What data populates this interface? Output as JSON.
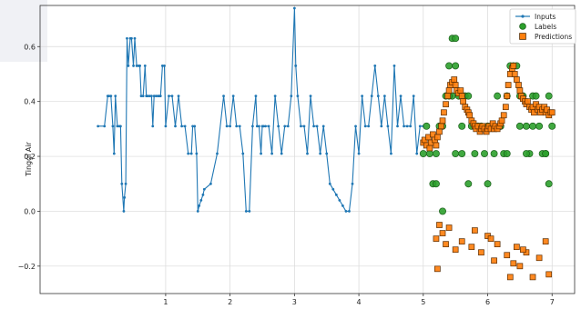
{
  "chart_data": {
    "type": "line",
    "title": "",
    "xlabel": "",
    "ylabel": "Tinggi Air",
    "xlim": [
      -0.95,
      7.35
    ],
    "ylim": [
      -0.3,
      0.75
    ],
    "x_ticks": [
      1,
      2,
      3,
      4,
      5,
      6,
      7
    ],
    "x_tick_labels": [
      "1",
      "2",
      "3",
      "4",
      "5",
      "6",
      "7"
    ],
    "y_ticks": [
      -0.2,
      0.0,
      0.2,
      0.4,
      0.6
    ],
    "y_tick_labels": [
      "−0.2",
      "0.0",
      "0.2",
      "0.4",
      "0.6"
    ],
    "grid": true,
    "legend_position": "top-right",
    "colors": {
      "inputs": "#1f77b4",
      "labels": "#2ca02c",
      "predictions": "#ff7f0e"
    },
    "series": [
      {
        "name": "Inputs",
        "style": "line-dot",
        "x": [
          -0.05,
          0.05,
          0.1,
          0.12,
          0.15,
          0.18,
          0.2,
          0.22,
          0.25,
          0.28,
          0.3,
          0.32,
          0.35,
          0.36,
          0.38,
          0.4,
          0.42,
          0.45,
          0.47,
          0.5,
          0.52,
          0.55,
          0.58,
          0.6,
          0.62,
          0.65,
          0.68,
          0.7,
          0.72,
          0.75,
          0.78,
          0.8,
          0.82,
          0.85,
          0.88,
          0.9,
          0.92,
          0.95,
          0.98,
          1.0,
          1.05,
          1.1,
          1.15,
          1.2,
          1.25,
          1.3,
          1.35,
          1.4,
          1.42,
          1.45,
          1.48,
          1.5,
          1.52,
          1.55,
          1.58,
          1.6,
          1.7,
          1.8,
          1.9,
          1.95,
          2.0,
          2.05,
          2.1,
          2.15,
          2.2,
          2.25,
          2.3,
          2.35,
          2.4,
          2.42,
          2.45,
          2.48,
          2.5,
          2.52,
          2.55,
          2.6,
          2.65,
          2.7,
          2.75,
          2.8,
          2.85,
          2.9,
          2.95,
          3.0,
          3.02,
          3.05,
          3.1,
          3.15,
          3.2,
          3.25,
          3.3,
          3.35,
          3.4,
          3.45,
          3.5,
          3.55,
          3.6,
          3.65,
          3.7,
          3.75,
          3.8,
          3.85,
          3.9,
          3.95,
          4.0,
          4.05,
          4.1,
          4.15,
          4.2,
          4.25,
          4.3,
          4.35,
          4.4,
          4.45,
          4.5,
          4.55,
          4.6,
          4.65,
          4.7,
          4.75,
          4.8,
          4.85,
          4.9,
          4.95,
          5.0
        ],
        "y": [
          0.31,
          0.31,
          0.42,
          0.42,
          0.42,
          0.31,
          0.21,
          0.42,
          0.31,
          0.31,
          0.31,
          0.1,
          0.0,
          0.05,
          0.1,
          0.63,
          0.53,
          0.63,
          0.63,
          0.53,
          0.63,
          0.53,
          0.53,
          0.53,
          0.42,
          0.42,
          0.53,
          0.42,
          0.42,
          0.42,
          0.42,
          0.31,
          0.42,
          0.42,
          0.42,
          0.42,
          0.42,
          0.53,
          0.53,
          0.31,
          0.42,
          0.42,
          0.31,
          0.42,
          0.31,
          0.31,
          0.21,
          0.21,
          0.31,
          0.31,
          0.21,
          0.0,
          0.02,
          0.04,
          0.06,
          0.08,
          0.1,
          0.21,
          0.42,
          0.31,
          0.31,
          0.42,
          0.31,
          0.31,
          0.21,
          0.0,
          0.0,
          0.31,
          0.42,
          0.31,
          0.31,
          0.21,
          0.31,
          0.31,
          0.31,
          0.31,
          0.21,
          0.42,
          0.31,
          0.21,
          0.31,
          0.31,
          0.42,
          0.74,
          0.53,
          0.42,
          0.31,
          0.31,
          0.21,
          0.42,
          0.31,
          0.31,
          0.21,
          0.31,
          0.21,
          0.1,
          0.08,
          0.06,
          0.04,
          0.02,
          0.0,
          0.0,
          0.1,
          0.31,
          0.21,
          0.42,
          0.31,
          0.31,
          0.42,
          0.53,
          0.42,
          0.31,
          0.42,
          0.31,
          0.21,
          0.53,
          0.31,
          0.42,
          0.31,
          0.31,
          0.31,
          0.42,
          0.21,
          0.31,
          0.31
        ]
      },
      {
        "name": "Labels",
        "style": "scatter-circle",
        "x": [
          5.0,
          5.05,
          5.1,
          5.15,
          5.2,
          5.25,
          5.3,
          5.35,
          5.4,
          5.45,
          5.5,
          5.55,
          5.6,
          5.65,
          5.7,
          5.75,
          5.8,
          5.85,
          5.9,
          5.95,
          6.0,
          6.05,
          6.1,
          6.15,
          6.2,
          6.25,
          6.3,
          6.35,
          6.4,
          6.45,
          6.5,
          6.55,
          6.6,
          6.65,
          6.7,
          6.75,
          6.8,
          6.85,
          6.9,
          6.95,
          7.0,
          5.2,
          5.3,
          5.5,
          5.6,
          5.8,
          6.0,
          6.1,
          6.3,
          6.5,
          6.7,
          6.9,
          5.4,
          5.7,
          6.2,
          6.6,
          6.95,
          5.45,
          5.5,
          6.45,
          6.5
        ],
        "y": [
          0.21,
          0.31,
          0.21,
          0.1,
          0.21,
          0.31,
          0.0,
          0.42,
          0.53,
          0.42,
          0.53,
          0.42,
          0.21,
          0.42,
          0.42,
          0.31,
          0.21,
          0.31,
          0.31,
          0.21,
          0.31,
          0.31,
          0.21,
          0.42,
          0.31,
          0.21,
          0.42,
          0.53,
          0.53,
          0.53,
          0.42,
          0.42,
          0.31,
          0.21,
          0.42,
          0.42,
          0.31,
          0.21,
          0.21,
          0.42,
          0.31,
          0.1,
          0.31,
          0.21,
          0.31,
          0.31,
          0.1,
          0.31,
          0.21,
          0.31,
          0.31,
          0.21,
          0.42,
          0.1,
          0.31,
          0.21,
          0.1,
          0.63,
          0.63,
          0.63,
          0.63
        ]
      },
      {
        "name": "Predictions",
        "style": "scatter-square",
        "x": [
          5.0,
          5.02,
          5.05,
          5.08,
          5.1,
          5.12,
          5.15,
          5.18,
          5.2,
          5.22,
          5.25,
          5.28,
          5.3,
          5.32,
          5.35,
          5.38,
          5.4,
          5.42,
          5.45,
          5.48,
          5.5,
          5.52,
          5.55,
          5.58,
          5.6,
          5.62,
          5.65,
          5.68,
          5.7,
          5.72,
          5.75,
          5.78,
          5.8,
          5.82,
          5.85,
          5.88,
          5.9,
          5.92,
          5.95,
          5.98,
          6.0,
          6.02,
          6.05,
          6.08,
          6.1,
          6.12,
          6.15,
          6.18,
          6.2,
          6.22,
          6.25,
          6.28,
          6.3,
          6.32,
          6.35,
          6.38,
          6.4,
          6.42,
          6.45,
          6.48,
          6.5,
          6.52,
          6.55,
          6.58,
          6.6,
          6.62,
          6.65,
          6.68,
          6.7,
          6.72,
          6.75,
          6.78,
          6.8,
          6.82,
          6.85,
          6.88,
          6.9,
          6.92,
          6.95,
          6.98,
          7.0,
          5.2,
          5.22,
          5.3,
          5.35,
          5.4,
          5.5,
          5.6,
          5.8,
          5.9,
          6.0,
          6.1,
          6.15,
          6.3,
          6.4,
          6.45,
          6.5,
          6.6,
          6.7,
          6.8,
          6.9,
          6.95,
          5.25,
          5.75,
          6.05,
          6.35,
          6.55
        ],
        "y": [
          0.25,
          0.26,
          0.24,
          0.27,
          0.23,
          0.25,
          0.28,
          0.26,
          0.24,
          0.27,
          0.29,
          0.31,
          0.33,
          0.36,
          0.39,
          0.42,
          0.44,
          0.46,
          0.47,
          0.48,
          0.46,
          0.44,
          0.43,
          0.44,
          0.42,
          0.4,
          0.38,
          0.37,
          0.36,
          0.35,
          0.33,
          0.32,
          0.31,
          0.3,
          0.31,
          0.29,
          0.3,
          0.31,
          0.3,
          0.29,
          0.3,
          0.31,
          0.3,
          0.32,
          0.3,
          0.31,
          0.3,
          0.31,
          0.32,
          0.33,
          0.35,
          0.38,
          0.42,
          0.46,
          0.5,
          0.52,
          0.53,
          0.5,
          0.48,
          0.46,
          0.44,
          0.42,
          0.41,
          0.4,
          0.39,
          0.4,
          0.38,
          0.37,
          0.38,
          0.36,
          0.39,
          0.37,
          0.38,
          0.36,
          0.37,
          0.38,
          0.36,
          0.37,
          0.35,
          0.36,
          0.36,
          -0.1,
          -0.21,
          -0.08,
          -0.12,
          -0.06,
          -0.14,
          -0.11,
          -0.07,
          -0.15,
          -0.09,
          -0.18,
          -0.12,
          -0.16,
          -0.19,
          -0.13,
          -0.2,
          -0.15,
          -0.24,
          -0.17,
          -0.11,
          -0.23,
          -0.05,
          -0.13,
          -0.1,
          -0.24,
          -0.14
        ]
      }
    ]
  }
}
